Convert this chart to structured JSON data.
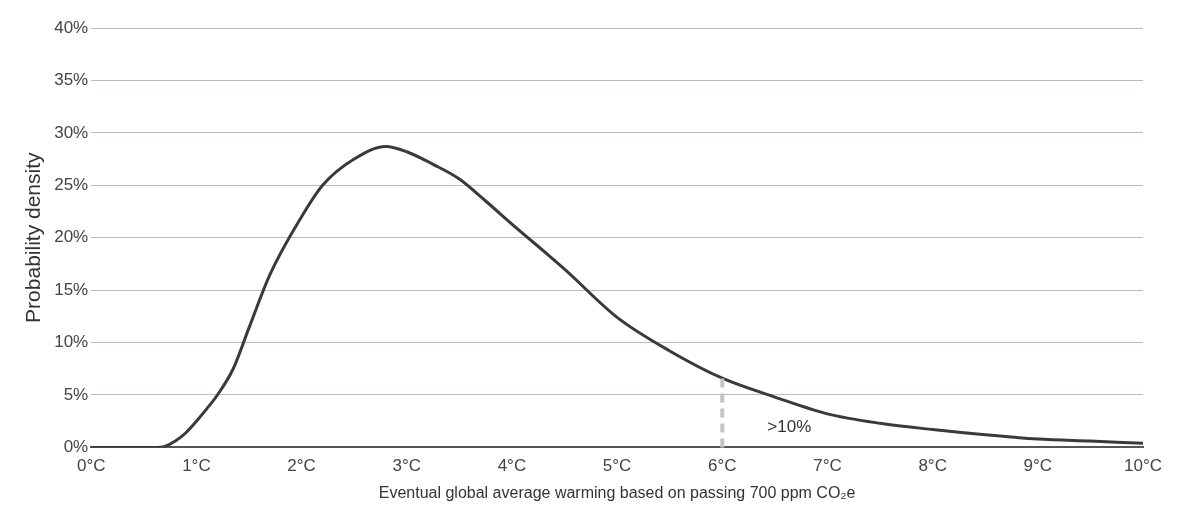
{
  "chart_data": {
    "type": "line",
    "xlabel": "Eventual global average warming based on passing 700 ppm CO₂e",
    "ylabel": "Probability density",
    "series": [
      {
        "color": "#3a3a3a",
        "x": [
          0,
          0.3,
          0.6,
          0.7,
          0.8,
          0.9,
          1,
          1.1,
          1.2,
          1.35,
          1.5,
          1.7,
          2,
          2.2,
          2.5,
          2.8,
          3,
          3.25,
          3.5,
          3.75,
          4,
          4.5,
          5,
          5.5,
          6,
          6.5,
          7,
          7.5,
          8,
          8.5,
          9,
          9.5,
          10
        ],
        "values": [
          0,
          0,
          0,
          0.1,
          0.6,
          1.4,
          2.5,
          3.7,
          5,
          7.5,
          11.4,
          16.5,
          22,
          25,
          27.5,
          28.7,
          28.2,
          27,
          25.6,
          23.5,
          21.3,
          17,
          12.4,
          9.2,
          6.6,
          4.8,
          3.2,
          2.3,
          1.7,
          1.2,
          0.8,
          0.6,
          0.4
        ]
      }
    ],
    "xlim": [
      0,
      10
    ],
    "xticks": [
      {
        "value": 0,
        "label": "0°C"
      },
      {
        "value": 1,
        "label": "1°C"
      },
      {
        "value": 2,
        "label": "2°C"
      },
      {
        "value": 3,
        "label": "3°C"
      },
      {
        "value": 4,
        "label": "4°C"
      },
      {
        "value": 5,
        "label": "5°C"
      },
      {
        "value": 6,
        "label": "6°C"
      },
      {
        "value": 7,
        "label": "7°C"
      },
      {
        "value": 8,
        "label": "8°C"
      },
      {
        "value": 9,
        "label": "9°C"
      },
      {
        "value": 10,
        "label": "10°C"
      }
    ],
    "ylim": [
      0,
      40
    ],
    "yticks": [
      {
        "value": 0,
        "label": "0%"
      },
      {
        "value": 5,
        "label": "5%"
      },
      {
        "value": 10,
        "label": "10%"
      },
      {
        "value": 15,
        "label": "15%"
      },
      {
        "value": 20,
        "label": "20%"
      },
      {
        "value": 25,
        "label": "25%"
      },
      {
        "value": 30,
        "label": "30%"
      },
      {
        "value": 35,
        "label": "35%"
      },
      {
        "value": 40,
        "label": "40%"
      }
    ],
    "ref_lines": [
      {
        "axis": "x",
        "value": 6,
        "color": "#c0c3c8",
        "line_style": "dashed"
      }
    ],
    "annotations": [
      ">10%"
    ],
    "grid": "y",
    "marker": "none",
    "line_style": "solid",
    "legend": false
  }
}
